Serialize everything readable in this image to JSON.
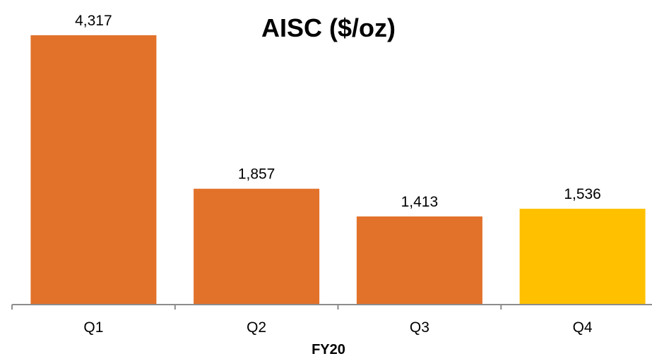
{
  "chart_data": {
    "type": "bar",
    "title": "AISC ($/oz)",
    "xlabel": "FY20",
    "ylabel": "",
    "categories": [
      "Q1",
      "Q2",
      "Q3",
      "Q4"
    ],
    "values": [
      4317,
      1857,
      1413,
      1536
    ],
    "value_labels": [
      "4,317",
      "1,857",
      "1,413",
      "1,536"
    ],
    "ylim": [
      0,
      4317
    ],
    "grid": false,
    "legend": "none",
    "colors": {
      "bar": "#E2712A",
      "highlight_bar": "#FFC000",
      "axis": "#8C8C8C"
    },
    "highlight_index": 3
  }
}
